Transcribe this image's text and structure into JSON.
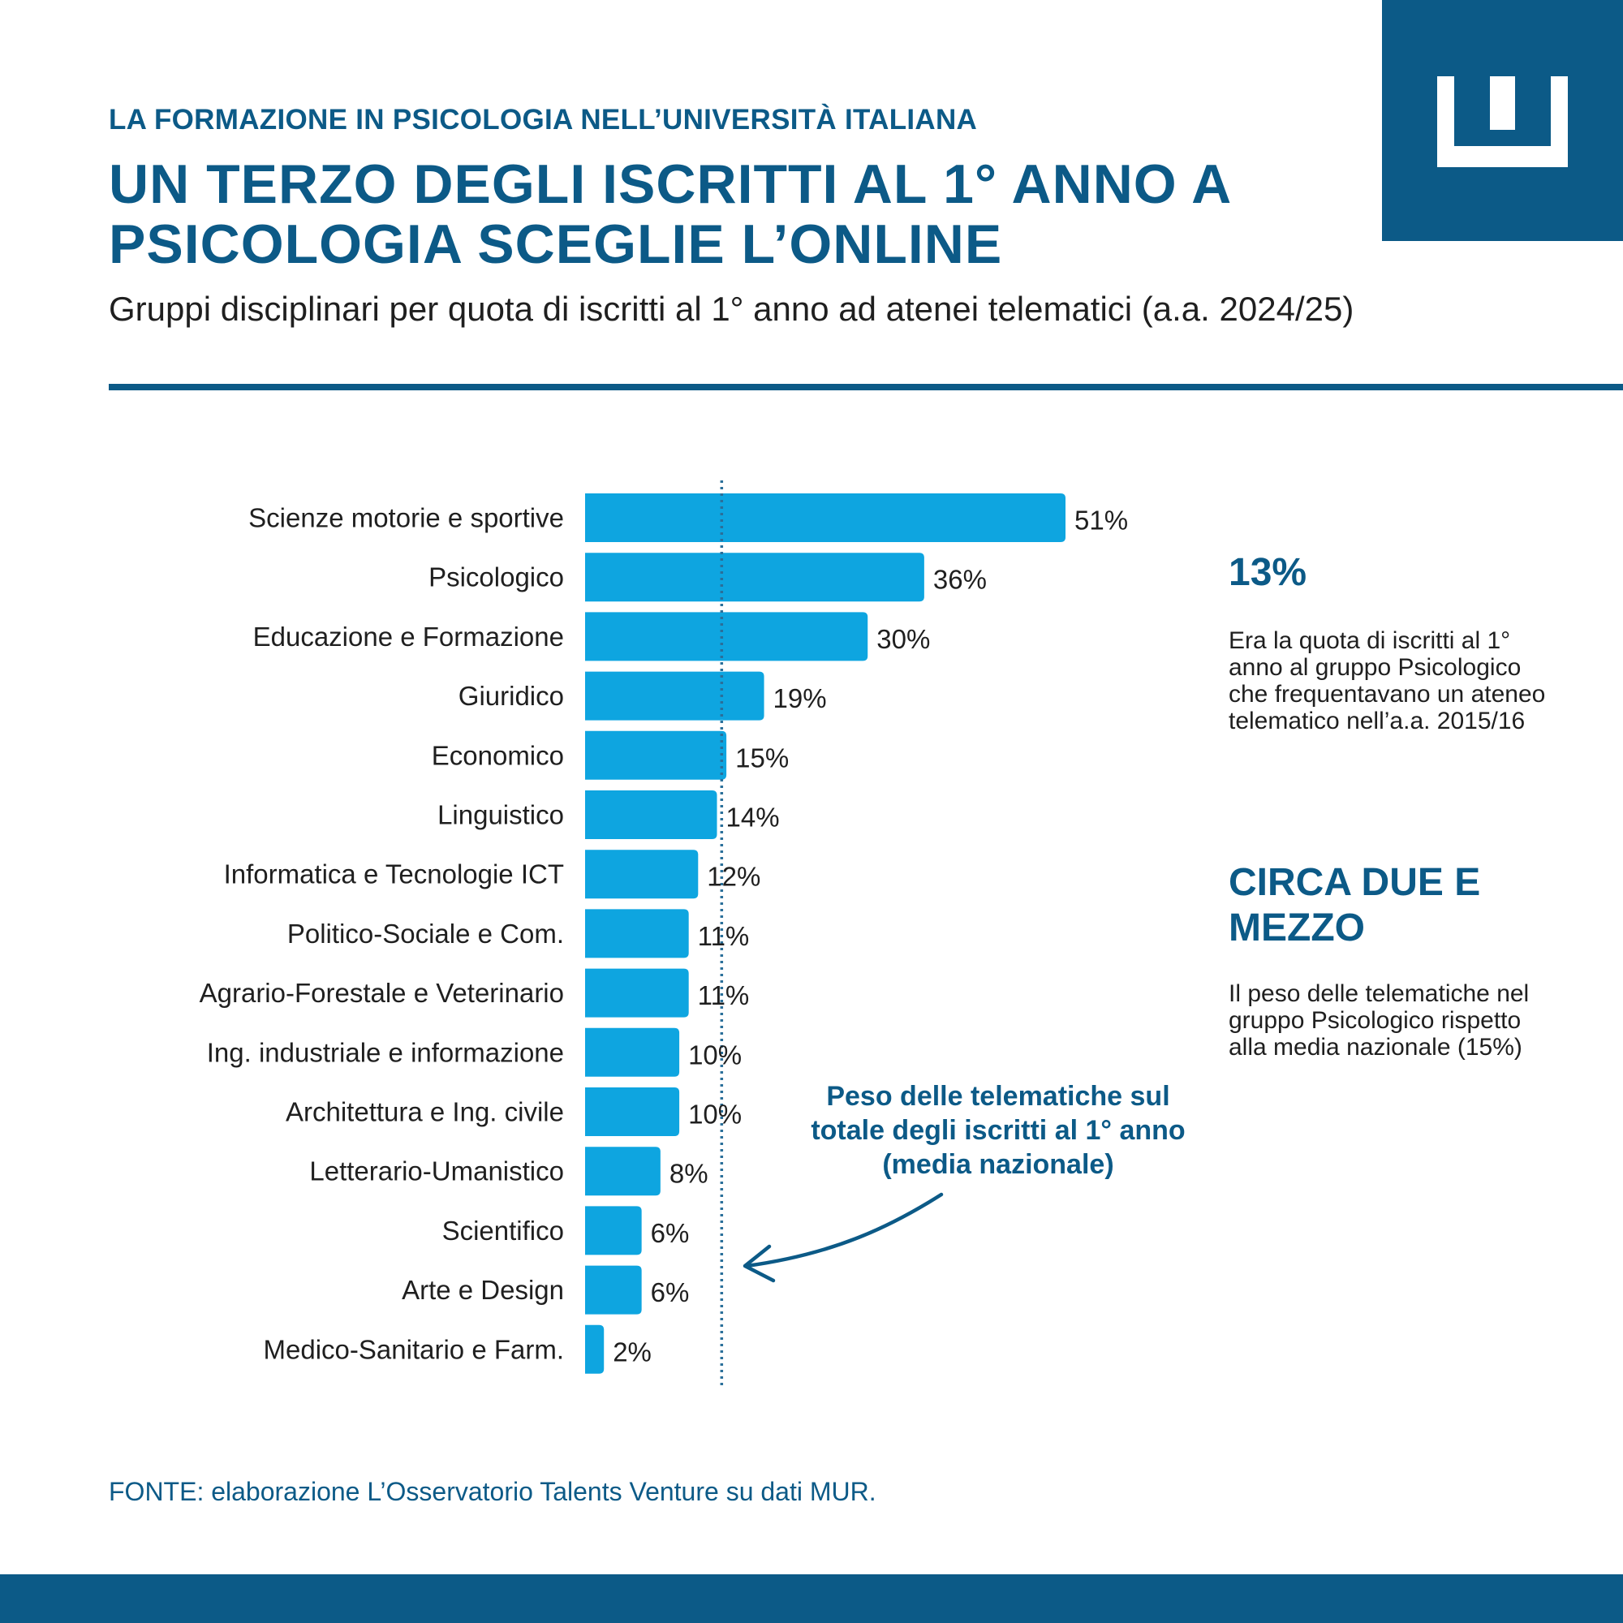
{
  "header": {
    "kicker": "LA FORMAZIONE IN PSICOLOGIA NELL’UNIVERSITÀ ITALIANA",
    "title": "UN TERZO DEGLI ISCRITTI AL 1° ANNO A PSICOLOGIA SCEGLIE L’ONLINE",
    "subtitle": "Gruppi disciplinari per quota di iscritti al 1° anno ad atenei telematici (a.a. 2024/25)"
  },
  "side_panel": {
    "stat1_value": "13%",
    "stat1_text": "Era la quota di iscritti al 1° anno al gruppo Psicologico che frequentavano un ateneo telematico nell’a.a. 2015/16",
    "stat2_value": "CIRCA DUE E MEZZO",
    "stat2_text": "Il peso delle telematiche nel gruppo Psicologico rispetto alla media nazionale (15%)"
  },
  "annotation": "Peso delle telematiche sul totale degli iscritti al 1° anno (media nazionale)",
  "source": "FONTE: elaborazione L’Osservatorio Talents Venture su dati MUR.",
  "colors": {
    "brand": "#0c5a87",
    "bar": "#0ea5e0",
    "reference_line": "#2a6f9a"
  },
  "chart_data": {
    "type": "bar",
    "orientation": "horizontal",
    "categories": [
      "Scienze motorie e sportive",
      "Psicologico",
      "Educazione e Formazione",
      "Giuridico",
      "Economico",
      "Linguistico",
      "Informatica e Tecnologie ICT",
      "Politico-Sociale e Com.",
      "Agrario-Forestale e Veterinario",
      "Ing. industriale e informazione",
      "Architettura e Ing. civile",
      "Letterario-Umanistico",
      "Scientifico",
      "Arte e Design",
      "Medico-Sanitario e Farm."
    ],
    "values": [
      51,
      36,
      30,
      19,
      15,
      14,
      12,
      11,
      11,
      10,
      10,
      8,
      6,
      6,
      2
    ],
    "value_labels": [
      "51%",
      "36%",
      "30%",
      "19%",
      "15%",
      "14%",
      "12%",
      "11%",
      "11%",
      "10%",
      "10%",
      "8%",
      "6%",
      "6%",
      "2%"
    ],
    "unit": "%",
    "reference_line": 14.5,
    "xlim": [
      0,
      51
    ],
    "grid": false,
    "legend": "none"
  }
}
